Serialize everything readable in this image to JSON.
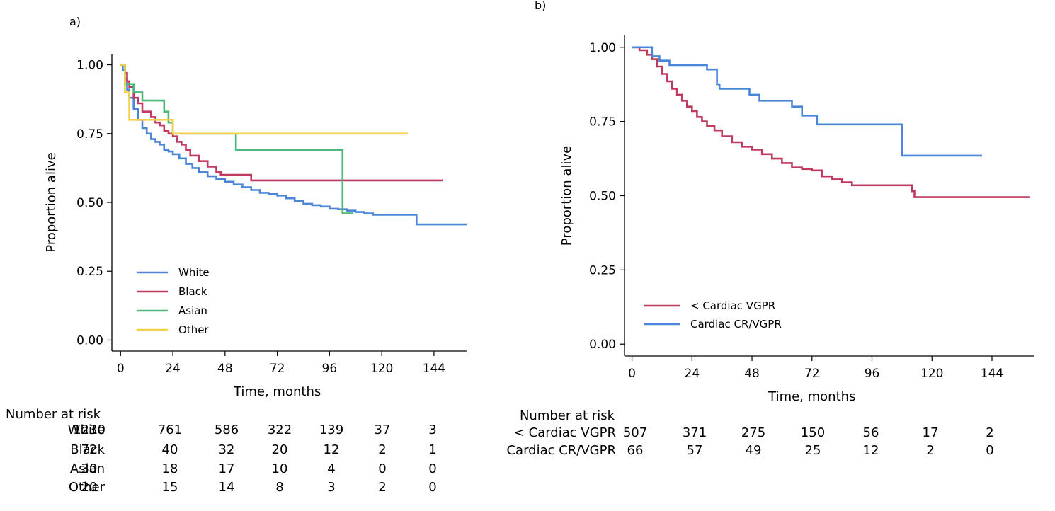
{
  "risk_title": "Number at risk",
  "chart_data": [
    {
      "type": "line",
      "step": true,
      "panel_label": "a)",
      "xlabel": "Time, months",
      "ylabel": "Proportion alive",
      "xlim": [
        -4,
        159
      ],
      "ylim": [
        -0.04,
        1.04
      ],
      "xticks": [
        0,
        24,
        48,
        72,
        96,
        120,
        144
      ],
      "yticks": [
        "0.00",
        "0.25",
        "0.50",
        "0.75",
        "1.00"
      ],
      "legend_position": "bottom-left",
      "series": [
        {
          "name": "White",
          "color": "#4a85d8",
          "points": [
            [
              0,
              1.0
            ],
            [
              1,
              0.98
            ],
            [
              2,
              0.95
            ],
            [
              3,
              0.91
            ],
            [
              4,
              0.88
            ],
            [
              6,
              0.84
            ],
            [
              8,
              0.8
            ],
            [
              10,
              0.77
            ],
            [
              12,
              0.75
            ],
            [
              14,
              0.73
            ],
            [
              16,
              0.72
            ],
            [
              18,
              0.71
            ],
            [
              20,
              0.69
            ],
            [
              22,
              0.685
            ],
            [
              24,
              0.675
            ],
            [
              27,
              0.66
            ],
            [
              30,
              0.64
            ],
            [
              33,
              0.625
            ],
            [
              36,
              0.61
            ],
            [
              40,
              0.595
            ],
            [
              44,
              0.585
            ],
            [
              48,
              0.575
            ],
            [
              52,
              0.565
            ],
            [
              56,
              0.555
            ],
            [
              60,
              0.545
            ],
            [
              64,
              0.535
            ],
            [
              68,
              0.53
            ],
            [
              72,
              0.525
            ],
            [
              76,
              0.515
            ],
            [
              80,
              0.505
            ],
            [
              84,
              0.495
            ],
            [
              88,
              0.49
            ],
            [
              92,
              0.485
            ],
            [
              96,
              0.477
            ],
            [
              100,
              0.475
            ],
            [
              104,
              0.47
            ],
            [
              108,
              0.465
            ],
            [
              112,
              0.46
            ],
            [
              116,
              0.455
            ],
            [
              136,
              0.42
            ],
            [
              159,
              0.42
            ]
          ]
        },
        {
          "name": "Black",
          "color": "#c0395e",
          "points": [
            [
              0,
              1.0
            ],
            [
              2,
              0.97
            ],
            [
              3,
              0.94
            ],
            [
              4,
              0.92
            ],
            [
              6,
              0.88
            ],
            [
              8,
              0.86
            ],
            [
              10,
              0.83
            ],
            [
              14,
              0.81
            ],
            [
              16,
              0.79
            ],
            [
              18,
              0.78
            ],
            [
              20,
              0.76
            ],
            [
              22,
              0.75
            ],
            [
              24,
              0.74
            ],
            [
              26,
              0.72
            ],
            [
              28,
              0.71
            ],
            [
              30,
              0.69
            ],
            [
              32,
              0.67
            ],
            [
              36,
              0.65
            ],
            [
              40,
              0.63
            ],
            [
              44,
              0.61
            ],
            [
              46,
              0.6
            ],
            [
              60,
              0.58
            ],
            [
              148,
              0.58
            ]
          ]
        },
        {
          "name": "Asian",
          "color": "#4cb87a",
          "points": [
            [
              0,
              1.0
            ],
            [
              2,
              0.93
            ],
            [
              6,
              0.9
            ],
            [
              10,
              0.87
            ],
            [
              20,
              0.83
            ],
            [
              22,
              0.79
            ],
            [
              24,
              0.75
            ],
            [
              53,
              0.69
            ],
            [
              102,
              0.46
            ],
            [
              107,
              0.46
            ]
          ]
        },
        {
          "name": "Other",
          "color": "#f2d147",
          "points": [
            [
              0,
              1.0
            ],
            [
              2,
              0.9
            ],
            [
              4,
              0.8
            ],
            [
              8,
              0.8
            ],
            [
              18,
              0.8
            ],
            [
              24,
              0.75
            ],
            [
              132,
              0.75
            ]
          ]
        }
      ]
    },
    {
      "type": "line",
      "step": true,
      "panel_label": "b)",
      "xlabel": "Time, months",
      "ylabel": "Proportion alive",
      "xlim": [
        -3,
        161
      ],
      "ylim": [
        -0.04,
        1.04
      ],
      "xticks": [
        0,
        24,
        48,
        72,
        96,
        120,
        144
      ],
      "yticks": [
        "0.00",
        "0.25",
        "0.50",
        "0.75",
        "1.00"
      ],
      "legend_position": "bottom-left",
      "series": [
        {
          "name": "< Cardiac VGPR",
          "color": "#c0395e",
          "points": [
            [
              0,
              1.0
            ],
            [
              3,
              0.99
            ],
            [
              6,
              0.975
            ],
            [
              8,
              0.96
            ],
            [
              10,
              0.935
            ],
            [
              12,
              0.91
            ],
            [
              14,
              0.885
            ],
            [
              16,
              0.86
            ],
            [
              18,
              0.84
            ],
            [
              20,
              0.82
            ],
            [
              22,
              0.8
            ],
            [
              24,
              0.785
            ],
            [
              26,
              0.765
            ],
            [
              28,
              0.75
            ],
            [
              30,
              0.735
            ],
            [
              33,
              0.72
            ],
            [
              36,
              0.7
            ],
            [
              40,
              0.68
            ],
            [
              44,
              0.665
            ],
            [
              48,
              0.655
            ],
            [
              52,
              0.64
            ],
            [
              56,
              0.625
            ],
            [
              60,
              0.61
            ],
            [
              64,
              0.595
            ],
            [
              68,
              0.59
            ],
            [
              72,
              0.585
            ],
            [
              76,
              0.565
            ],
            [
              80,
              0.555
            ],
            [
              84,
              0.545
            ],
            [
              88,
              0.535
            ],
            [
              112,
              0.515
            ],
            [
              113,
              0.495
            ],
            [
              159,
              0.495
            ]
          ]
        },
        {
          "name": "Cardiac CR/VGPR",
          "color": "#4a85d8",
          "points": [
            [
              0,
              1.0
            ],
            [
              8,
              0.97
            ],
            [
              11,
              0.955
            ],
            [
              15,
              0.94
            ],
            [
              30,
              0.925
            ],
            [
              34,
              0.875
            ],
            [
              35,
              0.86
            ],
            [
              47,
              0.84
            ],
            [
              51,
              0.82
            ],
            [
              64,
              0.8
            ],
            [
              68,
              0.77
            ],
            [
              74,
              0.74
            ],
            [
              108,
              0.635
            ],
            [
              140,
              0.635
            ]
          ]
        }
      ]
    }
  ],
  "risk_tables": [
    {
      "rows": [
        {
          "label": "White",
          "values": [
            "1230",
            "761",
            "586",
            "322",
            "139",
            "37",
            "3"
          ]
        },
        {
          "label": "Black",
          "values": [
            "72",
            "40",
            "32",
            "20",
            "12",
            "2",
            "1"
          ]
        },
        {
          "label": "Asian",
          "values": [
            "30",
            "18",
            "17",
            "10",
            "4",
            "0",
            "0"
          ]
        },
        {
          "label": "Other",
          "values": [
            "20",
            "15",
            "14",
            "8",
            "3",
            "2",
            "0"
          ]
        }
      ]
    },
    {
      "rows": [
        {
          "label": "< Cardiac VGPR",
          "values": [
            "507",
            "371",
            "275",
            "150",
            "56",
            "17",
            "2"
          ]
        },
        {
          "label": "Cardiac CR/VGPR",
          "values": [
            "66",
            "57",
            "49",
            "25",
            "12",
            "2",
            "0"
          ]
        }
      ]
    }
  ]
}
